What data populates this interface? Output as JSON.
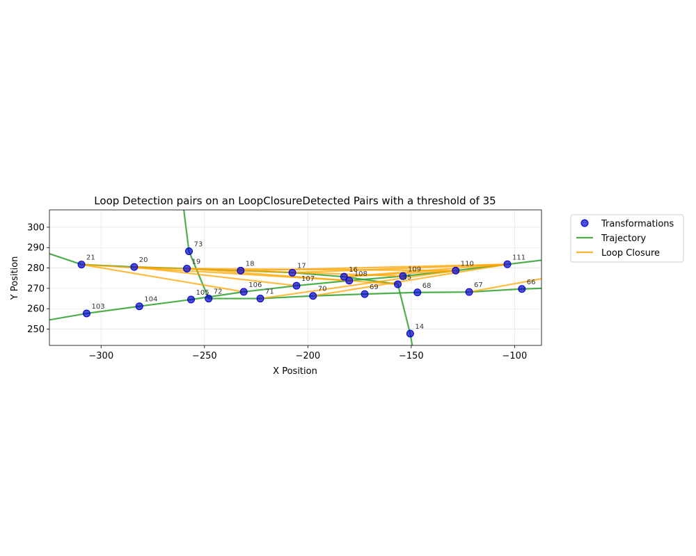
{
  "chart_data": {
    "type": "scatter",
    "title": "Loop Detection pairs on an LoopClosureDetected Pairs with a threshold of 35",
    "xlabel": "X Position",
    "ylabel": "Y Position",
    "xlim": [
      -325,
      -87
    ],
    "ylim": [
      242,
      308.5
    ],
    "xticks": [
      -300,
      -250,
      -200,
      -150,
      -100
    ],
    "yticks": [
      250,
      260,
      270,
      280,
      290,
      300
    ],
    "grid": true,
    "legend_position": "upper-right-outside",
    "colors": {
      "points": "#0000cc",
      "trajectory": "#2ca02c",
      "loop_closure": "#ffa500"
    },
    "legend": [
      {
        "key": "points",
        "label": "Transformations"
      },
      {
        "key": "trajectory",
        "label": "Trajectory"
      },
      {
        "key": "loop_closure",
        "label": "Loop Closure"
      }
    ],
    "points": [
      {
        "id": "14",
        "x": -150.5,
        "y": 247.8
      },
      {
        "id": "15",
        "x": -156.5,
        "y": 272.0
      },
      {
        "id": "16",
        "x": -182.5,
        "y": 275.7
      },
      {
        "id": "17",
        "x": -207.5,
        "y": 277.7
      },
      {
        "id": "18",
        "x": -232.5,
        "y": 278.7
      },
      {
        "id": "19",
        "x": -258.5,
        "y": 279.7
      },
      {
        "id": "20",
        "x": -284.0,
        "y": 280.5
      },
      {
        "id": "21",
        "x": -309.5,
        "y": 281.7
      },
      {
        "id": "73",
        "x": -257.5,
        "y": 288.2
      },
      {
        "id": "72",
        "x": -248.0,
        "y": 265.0
      },
      {
        "id": "71",
        "x": -223.0,
        "y": 265.0
      },
      {
        "id": "70",
        "x": -197.5,
        "y": 266.3
      },
      {
        "id": "69",
        "x": -172.5,
        "y": 267.2
      },
      {
        "id": "68",
        "x": -147.0,
        "y": 268.0
      },
      {
        "id": "67",
        "x": -122.0,
        "y": 268.2
      },
      {
        "id": "66",
        "x": -96.5,
        "y": 269.7
      },
      {
        "id": "103",
        "x": -307.0,
        "y": 257.7
      },
      {
        "id": "104",
        "x": -281.5,
        "y": 261.2
      },
      {
        "id": "105",
        "x": -256.5,
        "y": 264.5
      },
      {
        "id": "106",
        "x": -231.0,
        "y": 268.3
      },
      {
        "id": "107",
        "x": -205.5,
        "y": 271.3
      },
      {
        "id": "108",
        "x": -180.0,
        "y": 273.8
      },
      {
        "id": "109",
        "x": -154.0,
        "y": 276.0
      },
      {
        "id": "110",
        "x": -128.5,
        "y": 278.7
      },
      {
        "id": "111",
        "x": -103.5,
        "y": 281.8
      }
    ],
    "trajectory_segments": [
      [
        [
          -260.0,
          308.5
        ],
        [
          -257.5,
          288.2
        ],
        [
          -248.0,
          265.0
        ],
        [
          -223.0,
          265.0
        ],
        [
          -197.5,
          266.3
        ],
        [
          -172.5,
          267.2
        ],
        [
          -147.0,
          268.0
        ],
        [
          -122.0,
          268.2
        ],
        [
          -96.5,
          269.7
        ],
        [
          -87.0,
          270.0
        ]
      ],
      [
        [
          -325.0,
          287.0
        ],
        [
          -309.5,
          281.7
        ],
        [
          -284.0,
          280.5
        ],
        [
          -258.5,
          279.7
        ],
        [
          -232.5,
          278.7
        ],
        [
          -207.5,
          277.7
        ],
        [
          -182.5,
          275.7
        ],
        [
          -156.5,
          272.0
        ],
        [
          -150.5,
          247.8
        ],
        [
          -149.5,
          242.0
        ]
      ],
      [
        [
          -325.0,
          254.5
        ],
        [
          -307.0,
          257.7
        ],
        [
          -281.5,
          261.2
        ],
        [
          -256.5,
          264.5
        ],
        [
          -231.0,
          268.3
        ],
        [
          -205.5,
          271.3
        ],
        [
          -180.0,
          273.8
        ],
        [
          -154.0,
          276.0
        ],
        [
          -128.5,
          278.7
        ],
        [
          -103.5,
          281.8
        ],
        [
          -87.0,
          283.8
        ]
      ]
    ],
    "loop_closures": [
      [
        [
          -309.5,
          281.7
        ],
        [
          -231.0,
          268.3
        ]
      ],
      [
        [
          -309.5,
          281.7
        ],
        [
          -180.0,
          273.8
        ]
      ],
      [
        [
          -284.0,
          280.5
        ],
        [
          -205.5,
          271.3
        ]
      ],
      [
        [
          -284.0,
          280.5
        ],
        [
          -154.0,
          276.0
        ]
      ],
      [
        [
          -258.5,
          279.7
        ],
        [
          -156.5,
          272.0
        ]
      ],
      [
        [
          -258.5,
          279.7
        ],
        [
          -128.5,
          278.7
        ]
      ],
      [
        [
          -232.5,
          278.7
        ],
        [
          -103.5,
          281.8
        ]
      ],
      [
        [
          -207.5,
          277.7
        ],
        [
          -103.5,
          281.8
        ]
      ],
      [
        [
          -182.5,
          275.7
        ],
        [
          -128.5,
          278.7
        ]
      ],
      [
        [
          -182.5,
          275.7
        ],
        [
          -103.5,
          281.8
        ]
      ],
      [
        [
          -223.0,
          265.0
        ],
        [
          -128.5,
          278.7
        ]
      ],
      [
        [
          -197.5,
          266.3
        ],
        [
          -103.5,
          281.8
        ]
      ],
      [
        [
          -122.0,
          268.2
        ],
        [
          -87.0,
          274.7
        ]
      ]
    ]
  }
}
